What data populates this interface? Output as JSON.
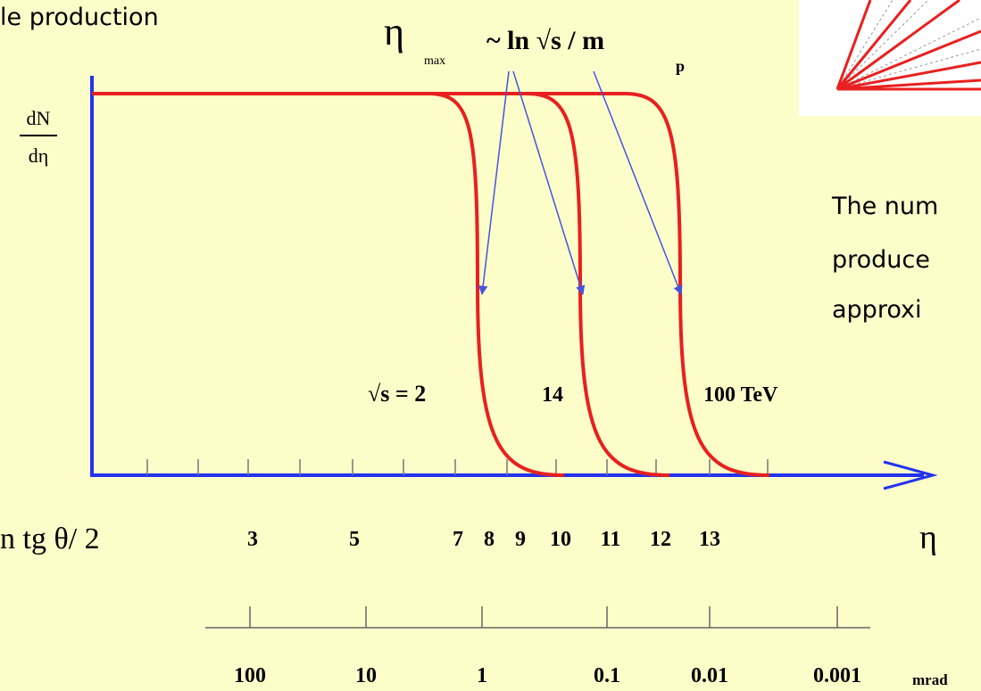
{
  "title": "le production",
  "formula": {
    "eta": "η",
    "eta_sub": "max",
    "expr": "~ ln √s / m",
    "mass_sub": "p"
  },
  "y_label": {
    "numerator": "dN",
    "denominator": "dη"
  },
  "curve_labels": [
    "√s = 2",
    "14",
    "100 TeV"
  ],
  "eta_axis": {
    "left_label": "n tg θ/ 2",
    "ticks": [
      "3",
      "5",
      "7",
      "8",
      "9",
      "10",
      "11",
      "12",
      "13"
    ],
    "label": "η"
  },
  "angle_axis": {
    "ticks": [
      "100",
      "10",
      "1",
      "0.1",
      "0.01",
      "0.001"
    ],
    "unit": "mrad"
  },
  "note": [
    "The num",
    "produce",
    "approxi"
  ]
}
